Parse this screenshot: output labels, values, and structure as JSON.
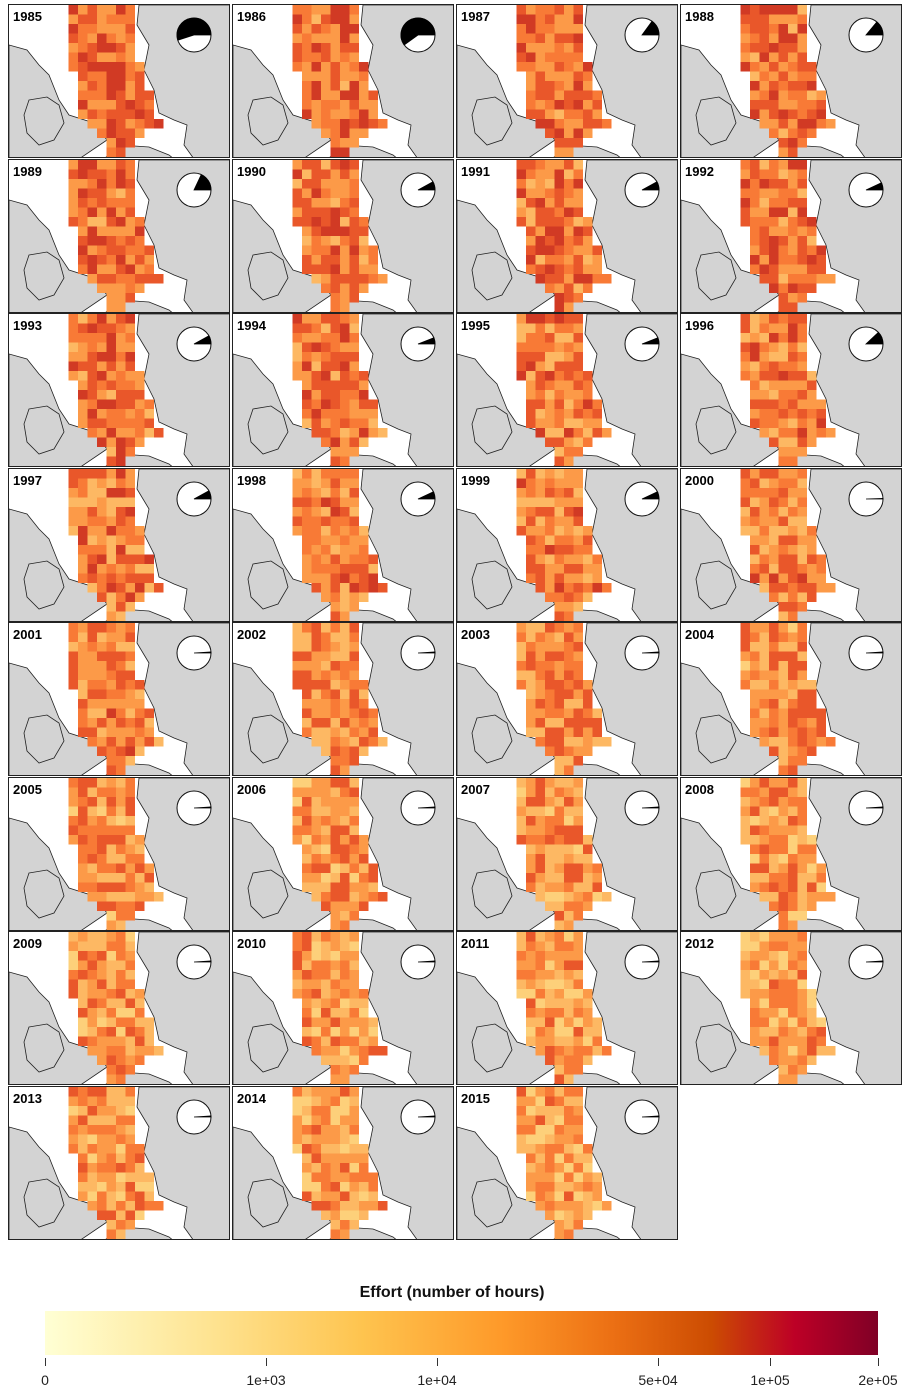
{
  "panels": [
    {
      "year": "1985",
      "fraction": 0.55
    },
    {
      "year": "1986",
      "fraction": 0.6
    },
    {
      "year": "1987",
      "fraction": 0.15
    },
    {
      "year": "1988",
      "fraction": 0.14
    },
    {
      "year": "1989",
      "fraction": 0.18
    },
    {
      "year": "1990",
      "fraction": 0.08
    },
    {
      "year": "1991",
      "fraction": 0.08
    },
    {
      "year": "1992",
      "fraction": 0.07
    },
    {
      "year": "1993",
      "fraction": 0.08
    },
    {
      "year": "1994",
      "fraction": 0.06
    },
    {
      "year": "1995",
      "fraction": 0.06
    },
    {
      "year": "1996",
      "fraction": 0.12
    },
    {
      "year": "1997",
      "fraction": 0.08
    },
    {
      "year": "1998",
      "fraction": 0.07
    },
    {
      "year": "1999",
      "fraction": 0.07
    },
    {
      "year": "2000",
      "fraction": 0.005
    },
    {
      "year": "2001",
      "fraction": 0.01
    },
    {
      "year": "2002",
      "fraction": 0.01
    },
    {
      "year": "2003",
      "fraction": 0.01
    },
    {
      "year": "2004",
      "fraction": 0.01
    },
    {
      "year": "2005",
      "fraction": 0.01
    },
    {
      "year": "2006",
      "fraction": 0.01
    },
    {
      "year": "2007",
      "fraction": 0.01
    },
    {
      "year": "2008",
      "fraction": 0.01
    },
    {
      "year": "2009",
      "fraction": 0.01
    },
    {
      "year": "2010",
      "fraction": 0.01
    },
    {
      "year": "2011",
      "fraction": 0.01
    },
    {
      "year": "2012",
      "fraction": 0.01
    },
    {
      "year": "2013",
      "fraction": 0.01
    },
    {
      "year": "2014",
      "fraction": 0.01
    },
    {
      "year": "2015",
      "fraction": 0.01
    }
  ],
  "legend": {
    "title": "Effort (number of hours)",
    "ticks": [
      "0",
      "1e+03",
      "1e+04",
      "5e+04",
      "1e+05",
      "2e+05"
    ],
    "colors": [
      "#ffffd4",
      "#fee391",
      "#fec44f",
      "#fe9929",
      "#ec7014",
      "#cc4c02",
      "#bd0026",
      "#800026"
    ]
  }
}
